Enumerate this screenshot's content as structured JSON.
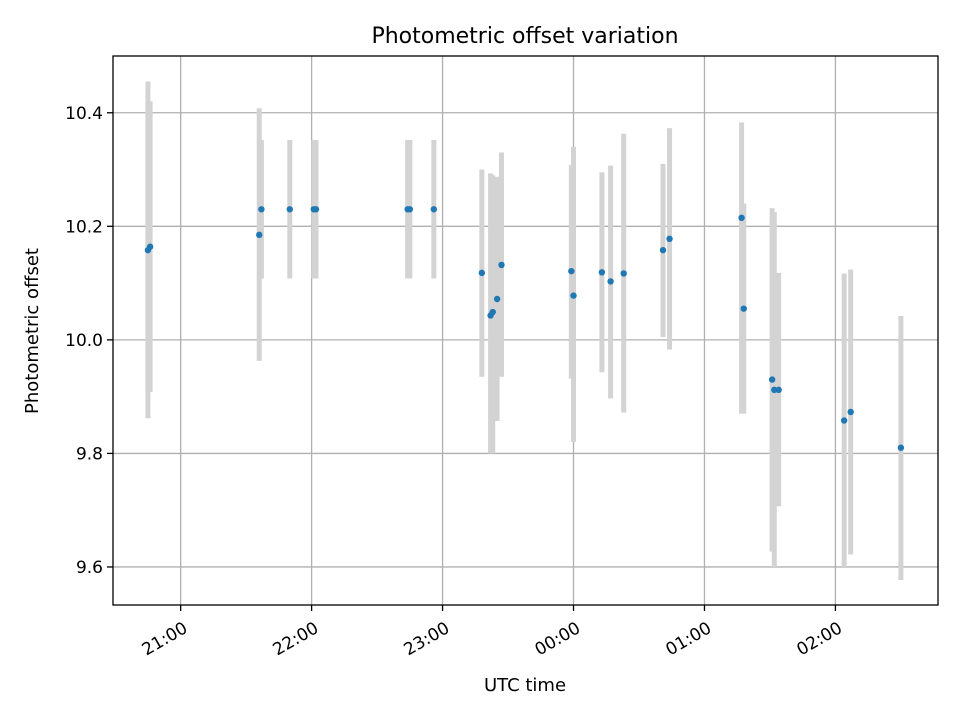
{
  "chart_data": {
    "type": "scatter",
    "title": "Photometric offset variation",
    "xlabel": "UTC time",
    "ylabel": "Photometric offset",
    "xlim_minutes_from_2100": [
      -31,
      347
    ],
    "ylim": [
      9.533,
      10.5
    ],
    "x_ticks": [
      {
        "label": "21:00",
        "value": 0
      },
      {
        "label": "22:00",
        "value": 60
      },
      {
        "label": "23:00",
        "value": 120
      },
      {
        "label": "00:00",
        "value": 180
      },
      {
        "label": "01:00",
        "value": 240
      },
      {
        "label": "02:00",
        "value": 300
      }
    ],
    "y_ticks": [
      {
        "label": "9.6",
        "value": 9.6
      },
      {
        "label": "9.8",
        "value": 9.8
      },
      {
        "label": "10.0",
        "value": 10.0
      },
      {
        "label": "10.2",
        "value": 10.2
      },
      {
        "label": "10.4",
        "value": 10.4
      }
    ],
    "grid": true,
    "colors": {
      "point": "#1f77b4",
      "errorbar": "#d3d3d3"
    },
    "points": [
      {
        "time": "20:45",
        "y": 10.158,
        "ylo": 9.862,
        "yhi": 10.455
      },
      {
        "time": "20:46",
        "y": 10.164,
        "ylo": 9.908,
        "yhi": 10.42
      },
      {
        "time": "21:36",
        "y": 10.185,
        "ylo": 9.963,
        "yhi": 10.408
      },
      {
        "time": "21:37",
        "y": 10.23,
        "ylo": 10.108,
        "yhi": 10.352
      },
      {
        "time": "21:50",
        "y": 10.23,
        "ylo": 10.108,
        "yhi": 10.352
      },
      {
        "time": "22:01",
        "y": 10.23,
        "ylo": 10.108,
        "yhi": 10.352
      },
      {
        "time": "22:02",
        "y": 10.23,
        "ylo": 10.108,
        "yhi": 10.352
      },
      {
        "time": "22:44",
        "y": 10.23,
        "ylo": 10.108,
        "yhi": 10.352
      },
      {
        "time": "22:45",
        "y": 10.23,
        "ylo": 10.108,
        "yhi": 10.352
      },
      {
        "time": "22:56",
        "y": 10.23,
        "ylo": 10.108,
        "yhi": 10.352
      },
      {
        "time": "23:18",
        "y": 10.118,
        "ylo": 9.935,
        "yhi": 10.3
      },
      {
        "time": "23:22",
        "y": 10.043,
        "ylo": 9.8,
        "yhi": 10.293
      },
      {
        "time": "23:23",
        "y": 10.049,
        "ylo": 9.8,
        "yhi": 10.29
      },
      {
        "time": "23:25",
        "y": 10.072,
        "ylo": 9.857,
        "yhi": 10.287
      },
      {
        "time": "23:27",
        "y": 10.132,
        "ylo": 9.935,
        "yhi": 10.33
      },
      {
        "time": "23:59",
        "y": 10.121,
        "ylo": 9.932,
        "yhi": 10.308
      },
      {
        "time": "00:00",
        "y": 10.078,
        "ylo": 9.82,
        "yhi": 10.34
      },
      {
        "time": "00:13",
        "y": 10.119,
        "ylo": 9.943,
        "yhi": 10.295
      },
      {
        "time": "00:17",
        "y": 10.103,
        "ylo": 9.897,
        "yhi": 10.307
      },
      {
        "time": "00:23",
        "y": 10.117,
        "ylo": 9.872,
        "yhi": 10.363
      },
      {
        "time": "00:41",
        "y": 10.158,
        "ylo": 10.005,
        "yhi": 10.31
      },
      {
        "time": "00:44",
        "y": 10.178,
        "ylo": 9.983,
        "yhi": 10.373
      },
      {
        "time": "01:17",
        "y": 10.215,
        "ylo": 9.87,
        "yhi": 10.383
      },
      {
        "time": "01:18",
        "y": 10.055,
        "ylo": 9.87,
        "yhi": 10.24
      },
      {
        "time": "01:31",
        "y": 9.93,
        "ylo": 9.627,
        "yhi": 10.232
      },
      {
        "time": "01:32",
        "y": 9.912,
        "ylo": 9.6,
        "yhi": 10.225
      },
      {
        "time": "01:34",
        "y": 9.912,
        "ylo": 9.707,
        "yhi": 10.118
      },
      {
        "time": "02:04",
        "y": 9.858,
        "ylo": 9.6,
        "yhi": 10.117
      },
      {
        "time": "02:07",
        "y": 9.873,
        "ylo": 9.622,
        "yhi": 10.124
      },
      {
        "time": "02:30",
        "y": 9.81,
        "ylo": 9.577,
        "yhi": 10.042
      }
    ]
  }
}
